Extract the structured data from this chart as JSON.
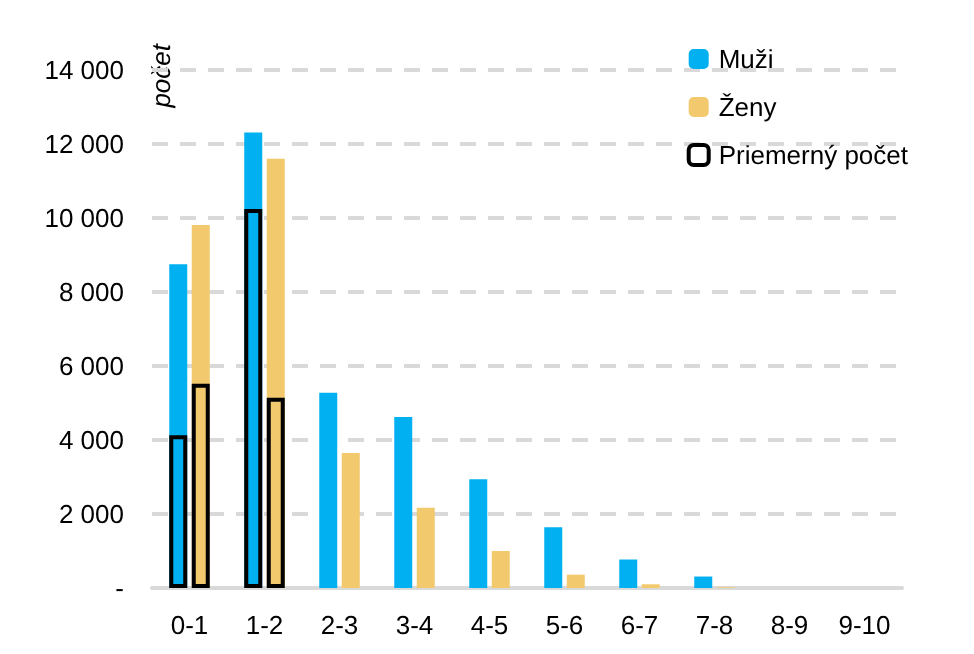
{
  "chart_data": {
    "type": "bar",
    "ylabel": "počet",
    "categories": [
      "0-1",
      "1-2",
      "2-3",
      "3-4",
      "4-5",
      "5-6",
      "6-7",
      "7-8",
      "8-9",
      "9-10"
    ],
    "series": [
      {
        "name": "Muži",
        "color": "#00b0f0",
        "values": [
          8750,
          12310,
          5280,
          4620,
          2940,
          1640,
          770,
          310,
          0,
          0
        ]
      },
      {
        "name": "Ženy",
        "color": "#f2c96d",
        "values": [
          9810,
          11600,
          3650,
          2170,
          1000,
          360,
          100,
          20,
          0,
          0
        ]
      },
      {
        "name": "Priemerný počet",
        "color": "#000000",
        "line_style": "solid",
        "values": [
          4130,
          10240,
          null,
          null,
          null,
          null,
          null,
          null,
          null,
          null
        ]
      },
      {
        "color": "#000000",
        "line_style": "solid",
        "values": [
          5520,
          5140,
          null,
          null,
          null,
          null,
          null,
          null,
          null,
          null
        ]
      }
    ],
    "ylim": [
      0,
      14000
    ],
    "yticks": [
      {
        "value": 0,
        "label": "-"
      },
      2000,
      4000,
      6000,
      8000,
      10000,
      12000,
      14000
    ],
    "grid": "y",
    "legend": "top right"
  }
}
